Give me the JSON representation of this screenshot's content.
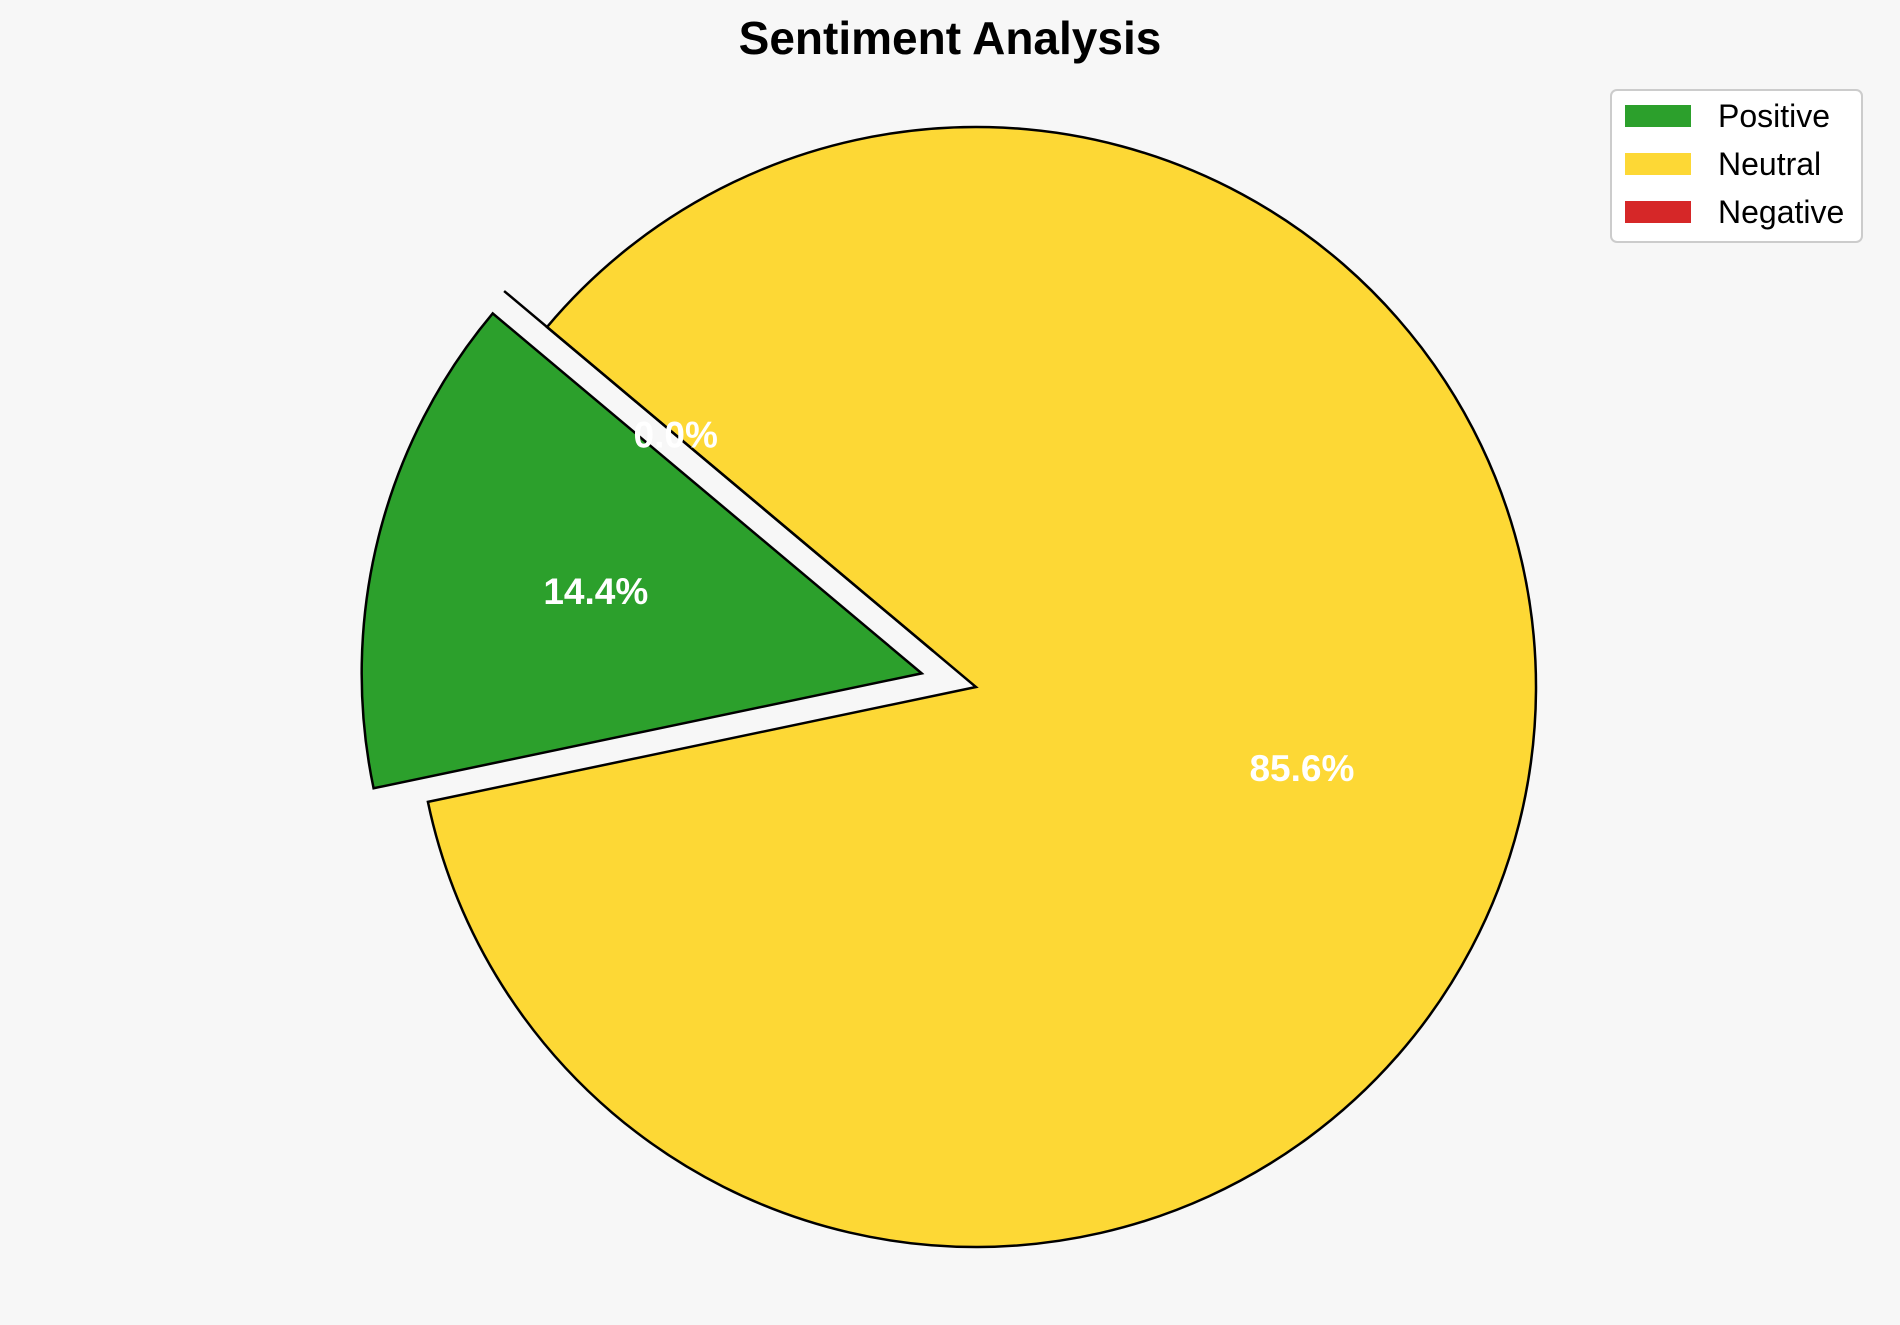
{
  "chart_data": {
    "type": "pie",
    "title": "Sentiment Analysis",
    "slices": [
      {
        "label": "Positive",
        "value": 14.4,
        "display": "14.4%",
        "color": "#2ca02c",
        "exploded": true
      },
      {
        "label": "Neutral",
        "value": 85.6,
        "display": "85.6%",
        "color": "#fdd835",
        "exploded": false
      },
      {
        "label": "Negative",
        "value": 0.0,
        "display": "0.0%",
        "color": "#d62728",
        "exploded": true
      }
    ],
    "start_angle_deg": 140,
    "direction": "counterclockwise",
    "edge_color": "#000000",
    "legend": {
      "placement": "top-right"
    }
  },
  "background_color": "#f7f7f7"
}
